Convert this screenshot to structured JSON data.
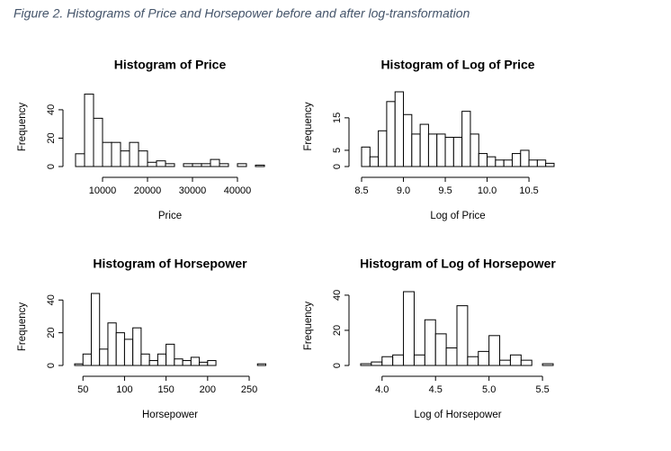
{
  "caption": "Figure 2. Histograms of Price and Horsepower before and after log-transformation",
  "chart_data": [
    {
      "type": "histogram",
      "title": "Histogram of Price",
      "x_label": "Price",
      "y_label": "Frequency",
      "bins": [
        4000,
        6000,
        8000,
        10000,
        12000,
        14000,
        16000,
        18000,
        20000,
        22000,
        24000,
        26000,
        28000,
        30000,
        32000,
        34000,
        36000,
        38000,
        40000,
        42000,
        44000,
        46000
      ],
      "values": [
        9,
        51,
        34,
        17,
        17,
        11,
        17,
        11,
        3,
        4,
        2,
        0,
        2,
        2,
        2,
        5,
        2,
        0,
        2,
        0,
        1
      ],
      "xlim": [
        4000,
        46000
      ],
      "xticks": [
        10000,
        20000,
        30000,
        40000
      ],
      "ylim": [
        0,
        52
      ],
      "yticks": [
        0,
        20,
        40
      ],
      "color": "#ffffff",
      "edge_color": "#000000"
    },
    {
      "type": "histogram",
      "title": "Histogram of Log of Price",
      "x_label": "Log of Price",
      "y_label": "Frequency",
      "bins": [
        8.5,
        8.6,
        8.7,
        8.8,
        8.9,
        9.0,
        9.1,
        9.2,
        9.3,
        9.4,
        9.5,
        9.6,
        9.7,
        9.8,
        9.9,
        10.0,
        10.1,
        10.2,
        10.3,
        10.4,
        10.5,
        10.6,
        10.7,
        10.8
      ],
      "values": [
        6,
        3,
        11,
        20,
        23,
        16,
        10,
        13,
        10,
        10,
        9,
        9,
        17,
        10,
        4,
        3,
        2,
        2,
        4,
        5,
        2,
        2,
        1
      ],
      "xlim": [
        8.5,
        10.8
      ],
      "xticks": [
        8.5,
        {
          "value": 9,
          "label": "9.0"
        },
        9.5,
        {
          "value": 10,
          "label": "10.0"
        },
        10.5
      ],
      "ylim": [
        0,
        23
      ],
      "yticks": [
        0,
        5,
        15
      ],
      "color": "#ffffff",
      "edge_color": "#000000"
    },
    {
      "type": "histogram",
      "title": "Histogram of Horsepower",
      "x_label": "Horsepower",
      "y_label": "Frequency",
      "bins": [
        40,
        50,
        60,
        70,
        80,
        90,
        100,
        110,
        120,
        130,
        140,
        150,
        160,
        170,
        180,
        190,
        200,
        210,
        220,
        230,
        240,
        250,
        260,
        270
      ],
      "values": [
        1,
        7,
        44,
        10,
        26,
        20,
        16,
        23,
        7,
        3,
        7,
        13,
        4,
        3,
        5,
        2,
        3,
        0,
        0,
        0,
        0,
        0,
        1
      ],
      "xlim": [
        40,
        270
      ],
      "xticks": [
        50,
        100,
        150,
        200,
        250
      ],
      "ylim": [
        0,
        44
      ],
      "yticks": [
        0,
        20,
        40
      ],
      "color": "#ffffff",
      "edge_color": "#000000"
    },
    {
      "type": "histogram",
      "title": "Histogram of Log of Horsepower",
      "x_label": "Log of Horsepower",
      "y_label": "Frequency",
      "bins": [
        3.8,
        3.9,
        4.0,
        4.1,
        4.2,
        4.3,
        4.4,
        4.5,
        4.6,
        4.7,
        4.8,
        4.9,
        5.0,
        5.1,
        5.2,
        5.3,
        5.4,
        5.5,
        5.6
      ],
      "values": [
        1,
        2,
        5,
        6,
        42,
        6,
        26,
        18,
        10,
        34,
        5,
        8,
        17,
        3,
        6,
        3,
        0,
        1
      ],
      "xlim": [
        3.8,
        5.6
      ],
      "xticks": [
        {
          "value": 4,
          "label": "4.0"
        },
        4.5,
        {
          "value": 5,
          "label": "5.0"
        },
        5.5
      ],
      "ylim": [
        0,
        42
      ],
      "yticks": [
        0,
        20,
        40
      ],
      "color": "#ffffff",
      "edge_color": "#000000"
    }
  ]
}
